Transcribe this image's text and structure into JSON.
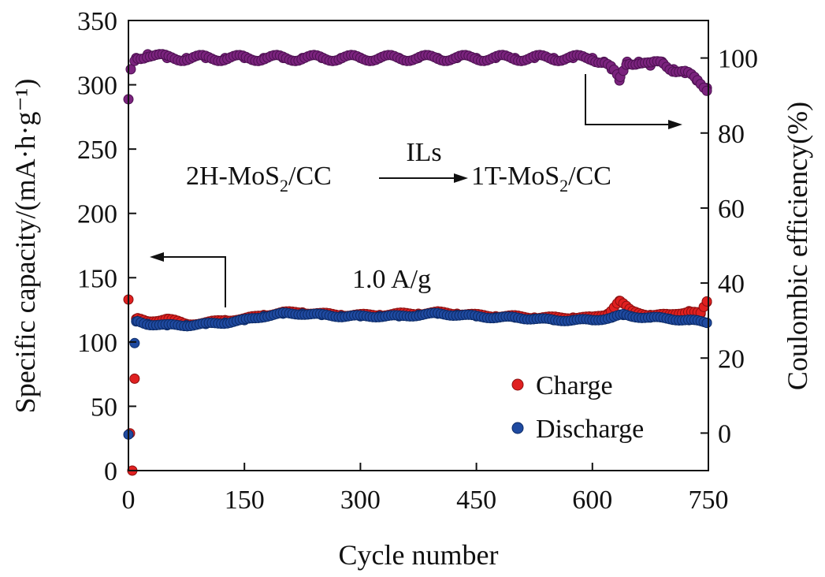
{
  "chart_data": {
    "type": "scatter",
    "title": "",
    "xlabel": "Cycle number",
    "ylabel_left": "Specific capacity/(mA·h·g⁻¹)",
    "ylabel_right": "Coulombic efficiency(%)",
    "xlim": [
      0,
      750
    ],
    "ylim_left": [
      0,
      350
    ],
    "ylim_right": [
      -10,
      110
    ],
    "x_ticks": [
      0,
      150,
      300,
      450,
      600,
      750
    ],
    "y_ticks_left": [
      0,
      50,
      100,
      150,
      200,
      250,
      300,
      350
    ],
    "y_ticks_right": [
      0,
      20,
      40,
      60,
      80,
      100
    ],
    "grid": false,
    "legend_position": "bottom-right",
    "annotations": {
      "reaction_left": "2H-MoS",
      "reaction_left_sub": "2",
      "reaction_left_end": "/CC",
      "reaction_over_arrow": "ILs",
      "reaction_right": "1T-MoS",
      "reaction_right_sub": "2",
      "reaction_right_end": "/CC",
      "current_density": "1.0 A/g"
    },
    "series": [
      {
        "name": "Charge",
        "axis": "left",
        "color": "#e02020",
        "points": [
          [
            0,
            133
          ],
          [
            2,
            29
          ],
          [
            5,
            0
          ],
          [
            10,
            118
          ],
          [
            25,
            116
          ],
          [
            50,
            118
          ],
          [
            75,
            114
          ],
          [
            100,
            115
          ],
          [
            125,
            117
          ],
          [
            150,
            118
          ],
          [
            175,
            121
          ],
          [
            200,
            123
          ],
          [
            225,
            123
          ],
          [
            250,
            122
          ],
          [
            275,
            121
          ],
          [
            300,
            121
          ],
          [
            325,
            121
          ],
          [
            350,
            122
          ],
          [
            375,
            122
          ],
          [
            400,
            123
          ],
          [
            425,
            122
          ],
          [
            450,
            121
          ],
          [
            475,
            120
          ],
          [
            500,
            120
          ],
          [
            525,
            119
          ],
          [
            550,
            119
          ],
          [
            575,
            119
          ],
          [
            600,
            119
          ],
          [
            620,
            122
          ],
          [
            635,
            132
          ],
          [
            650,
            124
          ],
          [
            675,
            121
          ],
          [
            700,
            121
          ],
          [
            725,
            124
          ],
          [
            740,
            122
          ],
          [
            748,
            131
          ]
        ]
      },
      {
        "name": "Discharge",
        "axis": "left",
        "color": "#1f4aa0",
        "points": [
          [
            0,
            28
          ],
          [
            10,
            116
          ],
          [
            25,
            114
          ],
          [
            50,
            113
          ],
          [
            75,
            113
          ],
          [
            100,
            114
          ],
          [
            125,
            115
          ],
          [
            150,
            117
          ],
          [
            175,
            120
          ],
          [
            200,
            122
          ],
          [
            225,
            122
          ],
          [
            250,
            121
          ],
          [
            275,
            120
          ],
          [
            300,
            120
          ],
          [
            325,
            120
          ],
          [
            350,
            120
          ],
          [
            375,
            121
          ],
          [
            400,
            122
          ],
          [
            425,
            121
          ],
          [
            450,
            120
          ],
          [
            475,
            119
          ],
          [
            500,
            119
          ],
          [
            525,
            118
          ],
          [
            550,
            117
          ],
          [
            575,
            117
          ],
          [
            600,
            117
          ],
          [
            625,
            119
          ],
          [
            640,
            121
          ],
          [
            650,
            120
          ],
          [
            675,
            119
          ],
          [
            700,
            118
          ],
          [
            725,
            117
          ],
          [
            748,
            115
          ]
        ]
      },
      {
        "name": "Coulombic efficiency",
        "axis": "right",
        "color": "#7b237e",
        "points": [
          [
            0,
            89
          ],
          [
            3,
            97
          ],
          [
            10,
            100
          ],
          [
            25,
            101
          ],
          [
            50,
            100
          ],
          [
            75,
            100
          ],
          [
            100,
            100
          ],
          [
            125,
            100
          ],
          [
            150,
            100
          ],
          [
            175,
            100
          ],
          [
            200,
            100
          ],
          [
            225,
            100
          ],
          [
            250,
            100
          ],
          [
            275,
            100
          ],
          [
            300,
            100
          ],
          [
            325,
            100
          ],
          [
            350,
            100
          ],
          [
            375,
            100
          ],
          [
            400,
            100
          ],
          [
            425,
            100
          ],
          [
            450,
            100
          ],
          [
            475,
            100
          ],
          [
            500,
            100
          ],
          [
            525,
            100
          ],
          [
            550,
            100
          ],
          [
            575,
            100
          ],
          [
            600,
            100
          ],
          [
            615,
            99
          ],
          [
            625,
            97
          ],
          [
            635,
            94
          ],
          [
            645,
            99
          ],
          [
            660,
            99
          ],
          [
            675,
            98
          ],
          [
            690,
            99
          ],
          [
            705,
            97
          ],
          [
            720,
            96
          ],
          [
            735,
            94
          ],
          [
            748,
            92
          ]
        ]
      }
    ]
  }
}
